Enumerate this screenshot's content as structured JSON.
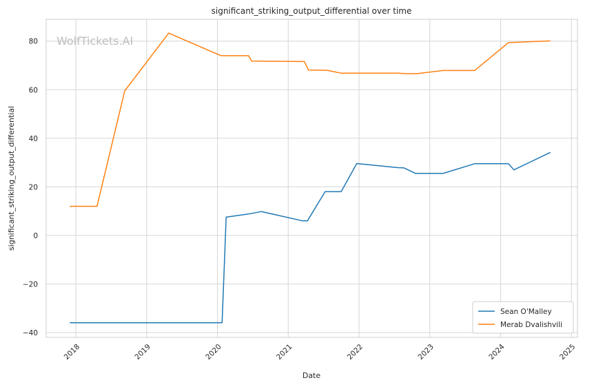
{
  "chart_data": {
    "type": "line",
    "title": "significant_striking_output_differential over time",
    "xlabel": "Date",
    "ylabel": "significant_striking_output_differential",
    "watermark": "WolfTickets.AI",
    "x_ticks": [
      "2018",
      "2019",
      "2020",
      "2021",
      "2022",
      "2023",
      "2024",
      "2025"
    ],
    "y_ticks": [
      "−40",
      "−20",
      "0",
      "20",
      "40",
      "60",
      "80"
    ],
    "xlim": [
      "2017-08-01",
      "2025-02-01"
    ],
    "ylim": [
      -42,
      89
    ],
    "grid": true,
    "legend_position": "lower-right",
    "series": [
      {
        "name": "Sean O'Malley",
        "color": "#1f77b4",
        "points": [
          [
            "2017-12-01",
            -36
          ],
          [
            "2018-06-01",
            -36
          ],
          [
            "2019-06-01",
            -36
          ],
          [
            "2020-01-25",
            -36
          ],
          [
            "2020-02-15",
            7.5
          ],
          [
            "2020-06-10",
            8.8
          ],
          [
            "2020-08-15",
            9.8
          ],
          [
            "2021-03-15",
            6.0
          ],
          [
            "2021-04-10",
            6.0
          ],
          [
            "2021-07-10",
            18.0
          ],
          [
            "2021-10-01",
            18.0
          ],
          [
            "2021-12-20",
            29.6
          ],
          [
            "2022-07-20",
            27.9
          ],
          [
            "2022-08-20",
            27.8
          ],
          [
            "2022-10-20",
            25.5
          ],
          [
            "2023-03-10",
            25.5
          ],
          [
            "2023-08-20",
            29.5
          ],
          [
            "2024-02-10",
            29.5
          ],
          [
            "2024-03-10",
            27.0
          ],
          [
            "2024-09-14",
            34.2
          ]
        ]
      },
      {
        "name": "Merab Dvalishvili",
        "color": "#ff7f0e",
        "points": [
          [
            "2017-12-01",
            12.0
          ],
          [
            "2018-04-20",
            12.0
          ],
          [
            "2018-09-10",
            59.5
          ],
          [
            "2019-04-25",
            83.3
          ],
          [
            "2020-01-20",
            74.0
          ],
          [
            "2020-06-10",
            74.0
          ],
          [
            "2020-06-25",
            71.8
          ],
          [
            "2021-03-25",
            71.6
          ],
          [
            "2021-04-15",
            68.1
          ],
          [
            "2021-07-20",
            68.0
          ],
          [
            "2021-10-01",
            66.8
          ],
          [
            "2022-07-20",
            66.8
          ],
          [
            "2022-09-01",
            66.6
          ],
          [
            "2022-10-25",
            66.6
          ],
          [
            "2023-03-10",
            67.9
          ],
          [
            "2023-08-20",
            67.9
          ],
          [
            "2024-02-10",
            79.4
          ],
          [
            "2024-09-14",
            80.1
          ]
        ]
      }
    ]
  }
}
